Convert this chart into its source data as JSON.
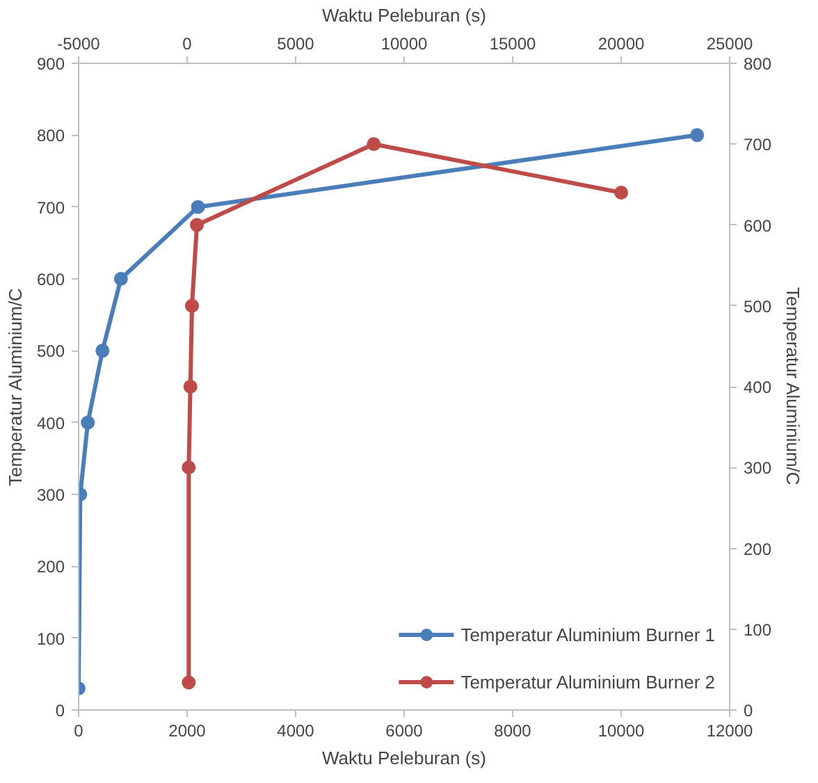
{
  "chart_data": {
    "type": "line",
    "xlabel": "Waktu Peleburan (s)",
    "x2label": "Waktu Peleburan (s)",
    "ylabel": "Temperatur Aluminium/C",
    "y2label": "Temperatur Aluminium/C",
    "xlim": [
      0,
      12000
    ],
    "xticks": [
      0,
      2000,
      4000,
      6000,
      8000,
      10000,
      12000
    ],
    "x2lim": [
      -5000,
      25000
    ],
    "x2ticks": [
      -5000,
      0,
      5000,
      10000,
      15000,
      20000,
      25000
    ],
    "ylim": [
      0,
      900
    ],
    "yticks": [
      0,
      100,
      200,
      300,
      400,
      500,
      600,
      700,
      800,
      900
    ],
    "y2lim": [
      0,
      800
    ],
    "y2ticks": [
      0,
      100,
      200,
      300,
      400,
      500,
      600,
      700,
      800
    ],
    "grid": false,
    "legend": "bottom right",
    "marker": "circle",
    "line_style": "solid",
    "series": [
      {
        "name": "Temperatur Aluminium Burner 1",
        "color": "#4a7ebb",
        "x": [
          0,
          30,
          170,
          440,
          780,
          2200,
          11400
        ],
        "values": [
          30,
          300,
          400,
          500,
          600,
          700,
          800
        ]
      },
      {
        "name": "Temperatur Aluminium Burner 2",
        "color": "#be4b48",
        "axis": "y2",
        "x": [
          2030,
          2030,
          2060,
          2090,
          2180,
          5440,
          10000
        ],
        "values": [
          34,
          300,
          400,
          500,
          600,
          700,
          640
        ]
      }
    ]
  }
}
